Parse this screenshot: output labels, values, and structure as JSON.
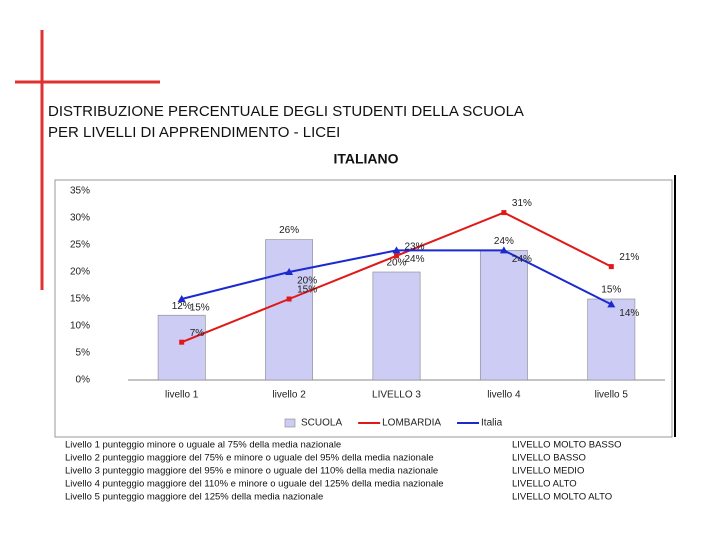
{
  "slide": {
    "heading": [
      "DISTRIBUZIONE PERCENTUALE DEGLI STUDENTI DELLA SCUOLA",
      "PER LIVELLI DI APPRENDIMENTO - LICEI"
    ],
    "notes": [
      {
        "left": "Livello 1 punteggio minore o uguale al 75% della media nazionale",
        "right": "LIVELLO MOLTO BASSO"
      },
      {
        "left": "Livello 2 punteggio maggiore del 75% e minore o uguale del 95% della media nazionale",
        "right": "LIVELLO BASSO"
      },
      {
        "left": "Livello 3 punteggio maggiore del 95% e minore o uguale del 110% della media nazionale",
        "right": "LIVELLO MEDIO"
      },
      {
        "left": "Livello 4 punteggio maggiore del 110% e minore o uguale del 125% della media nazionale",
        "right": "LIVELLO ALTO"
      },
      {
        "left": "Livello 5 punteggio maggiore del 125% della media nazionale",
        "right": "LIVELLO MOLTO ALTO"
      }
    ]
  },
  "chart_data": {
    "type": "bar",
    "title": "ITALIANO",
    "categories": [
      "livello 1",
      "livello 2",
      "LIVELLO 3",
      "livello 4",
      "livello 5"
    ],
    "series": [
      {
        "name": "SCUOLA",
        "type": "bar",
        "color": "#ccccf4",
        "values": [
          12,
          26,
          20,
          24,
          15
        ],
        "value_labels": [
          "12%",
          "26%",
          "20%",
          "24%",
          "15%"
        ]
      },
      {
        "name": "LOMBARDIA",
        "type": "line",
        "color": "#e01818",
        "values": [
          7,
          15,
          23,
          31,
          21
        ],
        "value_labels": [
          "7%",
          "15%",
          "23%",
          "31%",
          "21%"
        ]
      },
      {
        "name": "Italia",
        "type": "line",
        "color": "#1a2ad0",
        "values": [
          15,
          20,
          24,
          24,
          14
        ],
        "value_labels": [
          "15%",
          "20%",
          "24%",
          "24%",
          "14%"
        ]
      }
    ],
    "ylim": [
      0,
      35
    ],
    "yticks": [
      {
        "value": 0,
        "label": "0%"
      },
      {
        "value": 5,
        "label": "5%"
      },
      {
        "value": 10,
        "label": "10%"
      },
      {
        "value": 15,
        "label": "15%"
      },
      {
        "value": 20,
        "label": "20%"
      },
      {
        "value": 25,
        "label": "25%"
      },
      {
        "value": 30,
        "label": "30%"
      },
      {
        "value": 35,
        "label": "35%"
      }
    ],
    "grid": false
  }
}
